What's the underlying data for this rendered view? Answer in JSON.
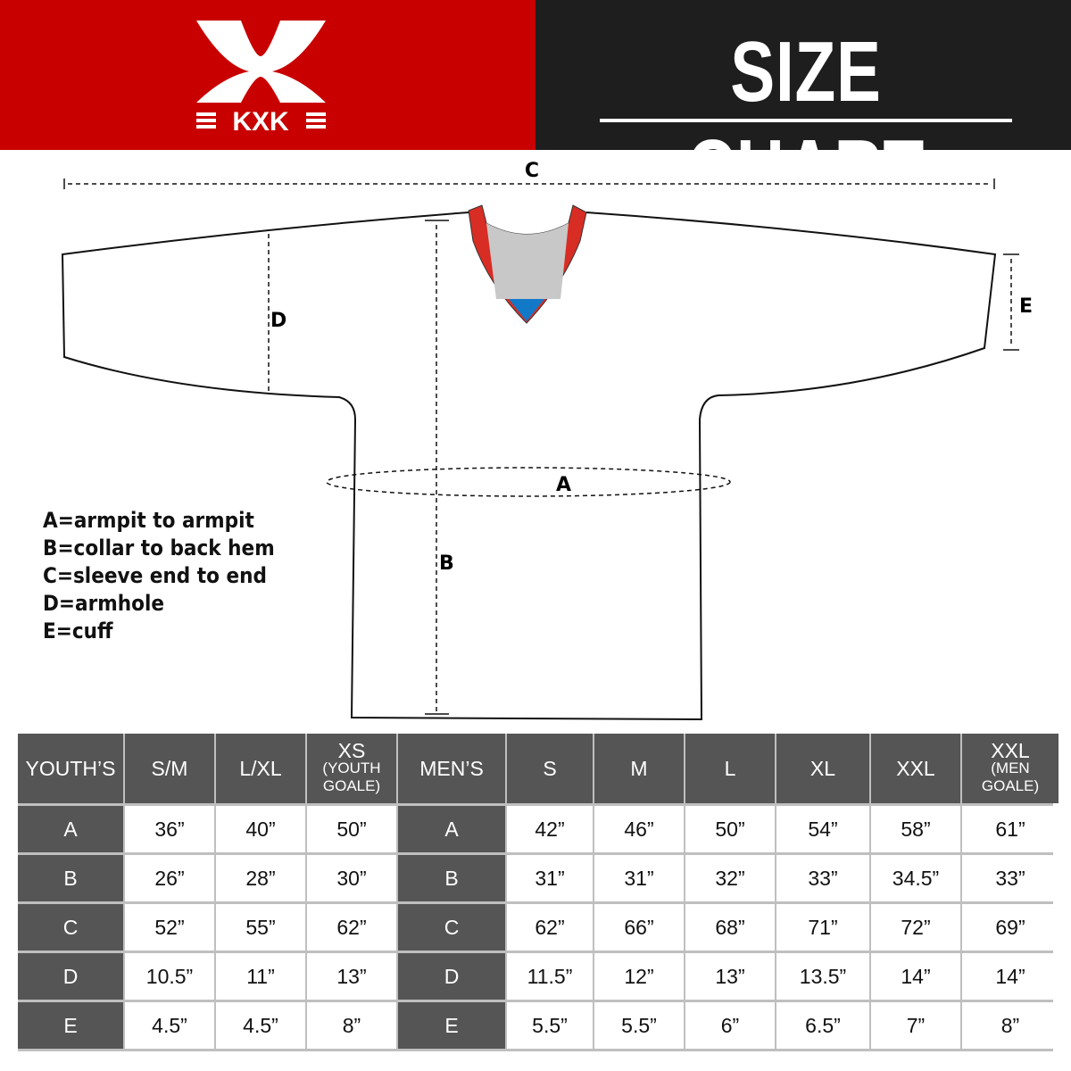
{
  "brand": {
    "logo_text": "KXK",
    "colors": {
      "red": "#c80000",
      "dark": "#1e1e1e",
      "table_header": "#555555"
    }
  },
  "title": "SIZE CHART",
  "diagram": {
    "labels": {
      "a": "A",
      "b": "B",
      "c": "C",
      "d": "D",
      "e": "E"
    }
  },
  "legend": [
    "A=armpit to armpit",
    "B=collar to back hem",
    "C=sleeve end to end",
    "D=armhole",
    "E=cuff"
  ],
  "table": {
    "youth_header": "YOUTH’S",
    "youth_sizes": [
      {
        "main": "S/M"
      },
      {
        "main": "L/XL"
      },
      {
        "main": "XS",
        "sub1": "(YOUTH",
        "sub2": "GOALE)"
      }
    ],
    "men_header": "MEN’S",
    "men_sizes": [
      {
        "main": "S"
      },
      {
        "main": "M"
      },
      {
        "main": "L"
      },
      {
        "main": "XL"
      },
      {
        "main": "XXL"
      },
      {
        "main": "XXL",
        "sub1": "(MEN",
        "sub2": "GOALE)"
      }
    ],
    "rows": [
      {
        "label": "A",
        "youth": [
          "36”",
          "40”",
          "50”"
        ],
        "men": [
          "42”",
          "46”",
          "50”",
          "54”",
          "58”",
          "61”"
        ]
      },
      {
        "label": "B",
        "youth": [
          "26”",
          "28”",
          "30”"
        ],
        "men": [
          "31”",
          "31”",
          "32”",
          "33”",
          "34.5”",
          "33”"
        ]
      },
      {
        "label": "C",
        "youth": [
          "52”",
          "55”",
          "62”"
        ],
        "men": [
          "62”",
          "66”",
          "68”",
          "71”",
          "72”",
          "69”"
        ]
      },
      {
        "label": "D",
        "youth": [
          "10.5”",
          "11”",
          "13”"
        ],
        "men": [
          "11.5”",
          "12”",
          "13”",
          "13.5”",
          "14”",
          "14”"
        ]
      },
      {
        "label": "E",
        "youth": [
          "4.5”",
          "4.5”",
          "8”"
        ],
        "men": [
          "5.5”",
          "5.5”",
          "6”",
          "6.5”",
          "7”",
          "8”"
        ]
      }
    ]
  }
}
